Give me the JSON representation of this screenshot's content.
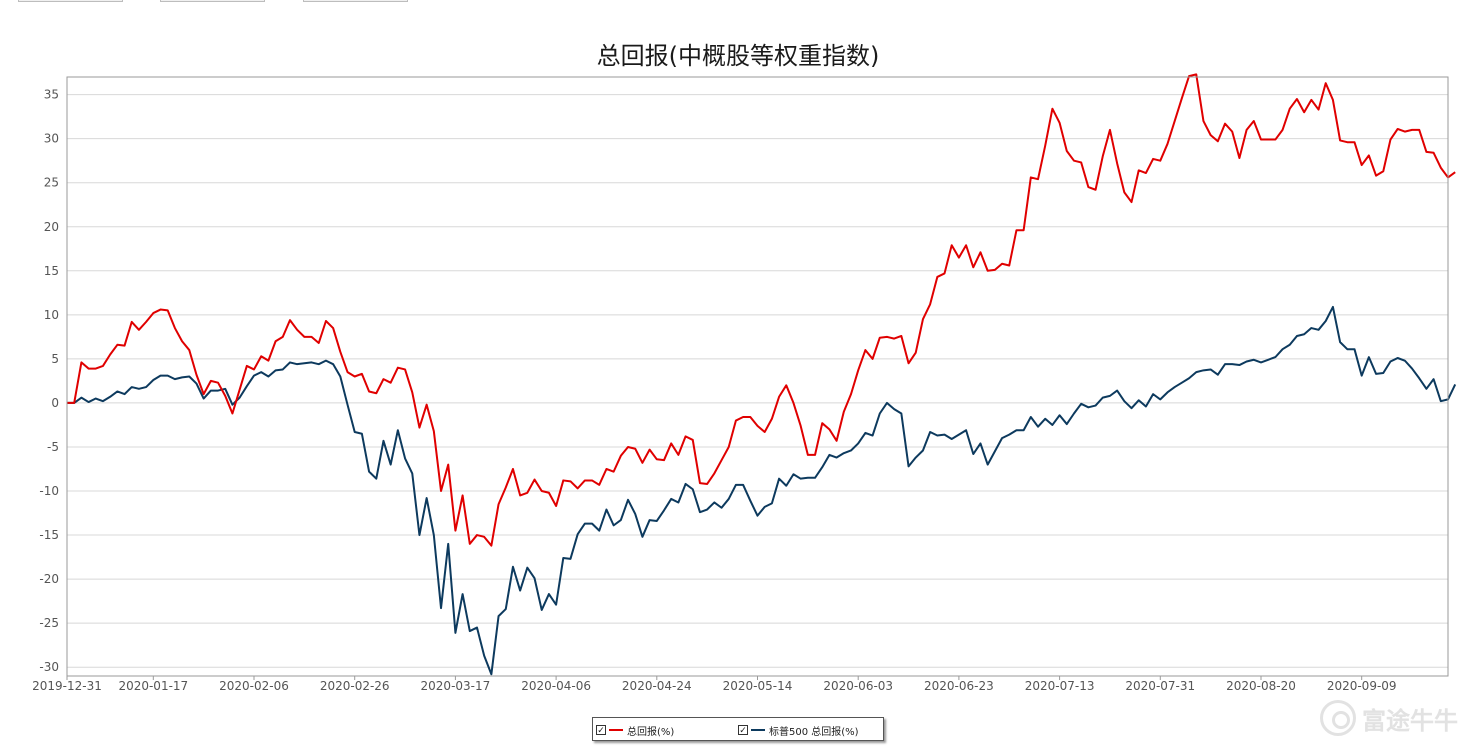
{
  "toolbar": {
    "buttons": [
      "",
      "",
      ""
    ]
  },
  "chart_data": {
    "type": "line",
    "title": "总回报(中概股等权重指数)",
    "xlabel": "",
    "ylabel": "",
    "ylim": [
      -31,
      37
    ],
    "y_ticks": [
      35,
      30,
      25,
      20,
      15,
      10,
      5,
      0,
      -5,
      -10,
      -15,
      -20,
      -25,
      -30
    ],
    "x_tick_labels": [
      "2019-12-31",
      "2020-01-17",
      "2020-02-06",
      "2020-02-26",
      "2020-03-17",
      "2020-04-06",
      "2020-04-24",
      "2020-05-14",
      "2020-06-03",
      "2020-06-23",
      "2020-07-13",
      "2020-07-31",
      "2020-08-20",
      "2020-09-09"
    ],
    "x_tick_index": [
      0,
      12,
      26,
      40,
      54,
      68,
      82,
      96,
      110,
      124,
      138,
      152,
      166,
      180
    ],
    "n_points": 193,
    "grid": true,
    "legend_position": "bottom-center",
    "series": [
      {
        "name": "总回报(%)",
        "color": "#e00000",
        "values": [
          0,
          0,
          4.6,
          3.9,
          3.9,
          4.2,
          5.5,
          6.6,
          6.5,
          9.2,
          8.3,
          9.2,
          10.2,
          10.6,
          10.5,
          8.5,
          7.0,
          6.0,
          3.2,
          1.0,
          2.5,
          2.3,
          0.8,
          -1.2,
          1.5,
          4.2,
          3.8,
          5.3,
          4.8,
          7.0,
          7.5,
          9.4,
          8.3,
          7.5,
          7.5,
          6.8,
          9.3,
          8.5,
          5.8,
          3.5,
          3.0,
          3.3,
          1.3,
          1.1,
          2.7,
          2.3,
          4.0,
          3.8,
          1.2,
          -2.8,
          -0.2,
          -3.2,
          -10.0,
          -7.0,
          -14.5,
          -10.5,
          -16.0,
          -15.0,
          -15.2,
          -16.2,
          -11.5,
          -9.6,
          -7.5,
          -10.5,
          -10.2,
          -8.7,
          -10.0,
          -10.2,
          -11.7,
          -8.8,
          -8.9,
          -9.7,
          -8.8,
          -8.8,
          -9.3,
          -7.5,
          -7.8,
          -6.0,
          -5.0,
          -5.2,
          -6.8,
          -5.3,
          -6.4,
          -6.5,
          -4.6,
          -5.9,
          -3.8,
          -4.2,
          -9.1,
          -9.2,
          -8.0,
          -6.5,
          -5.0,
          -2.0,
          -1.6,
          -1.6,
          -2.6,
          -3.3,
          -1.8,
          0.7,
          2.0,
          0,
          -2.6,
          -5.9,
          -5.9,
          -2.3,
          -3.0,
          -4.3,
          -1.0,
          1.0,
          3.7,
          6.0,
          5.0,
          7.4,
          7.5,
          7.3,
          7.6,
          4.5,
          5.7,
          9.5,
          11.2,
          14.3,
          14.7,
          17.9,
          16.5,
          17.9,
          15.4,
          17.1,
          15.0,
          15.1,
          15.8,
          15.6,
          19.6,
          19.6,
          25.6,
          25.4,
          29.2,
          33.4,
          31.8,
          28.6,
          27.5,
          27.3,
          24.5,
          24.2,
          28.0,
          31.0,
          27.2,
          23.9,
          22.8,
          26.4,
          26.1,
          27.7,
          27.5,
          29.4,
          32.0,
          34.6,
          37.1,
          37.3,
          32.0,
          30.4,
          29.7,
          31.7,
          30.8,
          27.8,
          31.0,
          32.0,
          29.9,
          29.9,
          29.9,
          31.0,
          33.4,
          34.5,
          33.0,
          34.4,
          33.3,
          36.3,
          34.4,
          29.8,
          29.6,
          29.6,
          27.0,
          28.1,
          25.8,
          26.3,
          29.9,
          31.1,
          30.8,
          31.0,
          31.0,
          28.5,
          28.4,
          26.7,
          25.6,
          26.2
        ]
      },
      {
        "name": "标普500 总回报(%)",
        "color": "#0d3a5e",
        "values": [
          0,
          0,
          0.6,
          0.1,
          0.5,
          0.2,
          0.7,
          1.3,
          1.0,
          1.8,
          1.6,
          1.8,
          2.6,
          3.1,
          3.1,
          2.7,
          2.9,
          3.0,
          2.2,
          0.5,
          1.4,
          1.4,
          1.6,
          -0.2,
          0.6,
          1.9,
          3.1,
          3.5,
          3.0,
          3.7,
          3.8,
          4.6,
          4.4,
          4.5,
          4.6,
          4.4,
          4.8,
          4.4,
          3.0,
          -0.2,
          -3.3,
          -3.5,
          -7.8,
          -8.6,
          -4.3,
          -7.0,
          -3.1,
          -6.3,
          -8.0,
          -15.0,
          -10.8,
          -15.0,
          -23.3,
          -16.0,
          -26.1,
          -21.7,
          -25.9,
          -25.5,
          -28.7,
          -30.8,
          -24.2,
          -23.4,
          -18.6,
          -21.3,
          -18.7,
          -19.9,
          -23.5,
          -21.7,
          -22.9,
          -17.6,
          -17.7,
          -14.9,
          -13.7,
          -13.7,
          -14.5,
          -12.1,
          -13.9,
          -13.3,
          -11.0,
          -12.6,
          -15.2,
          -13.3,
          -13.4,
          -12.2,
          -10.9,
          -11.3,
          -9.2,
          -9.8,
          -12.4,
          -12.1,
          -11.3,
          -11.9,
          -10.9,
          -9.3,
          -9.3,
          -11.1,
          -12.8,
          -11.8,
          -11.4,
          -8.6,
          -9.4,
          -8.1,
          -8.6,
          -8.5,
          -8.5,
          -7.3,
          -5.9,
          -6.2,
          -5.7,
          -5.4,
          -4.6,
          -3.4,
          -3.7,
          -1.2,
          0,
          -0.7,
          -1.2,
          -7.2,
          -6.2,
          -5.4,
          -3.3,
          -3.7,
          -3.6,
          -4.1,
          -3.6,
          -3.1,
          -5.8,
          -4.6,
          -7.0,
          -5.5,
          -4.0,
          -3.6,
          -3.1,
          -3.1,
          -1.6,
          -2.7,
          -1.8,
          -2.5,
          -1.4,
          -2.4,
          -1.2,
          -0.1,
          -0.5,
          -0.3,
          0.6,
          0.8,
          1.4,
          0.2,
          -0.6,
          0.3,
          -0.4,
          1.0,
          0.4,
          1.2,
          1.8,
          2.3,
          2.8,
          3.5,
          3.7,
          3.8,
          3.2,
          4.4,
          4.4,
          4.3,
          4.7,
          4.9,
          4.6,
          4.9,
          5.2,
          6.1,
          6.6,
          7.6,
          7.8,
          8.5,
          8.3,
          9.3,
          10.9,
          6.9,
          6.1,
          6.1,
          3.1,
          5.2,
          3.3,
          3.4,
          4.7,
          5.1,
          4.8,
          3.9,
          2.8,
          1.6,
          2.7,
          0.2,
          0.4,
          2.1
        ]
      }
    ]
  },
  "legend": {
    "items": [
      {
        "label": "总回报(%)",
        "checked": "✓",
        "color": "#e00000"
      },
      {
        "label": "标普500 总回报(%)",
        "checked": "✓",
        "color": "#0d3a5e"
      }
    ]
  },
  "watermark": {
    "text": "富途牛牛"
  }
}
